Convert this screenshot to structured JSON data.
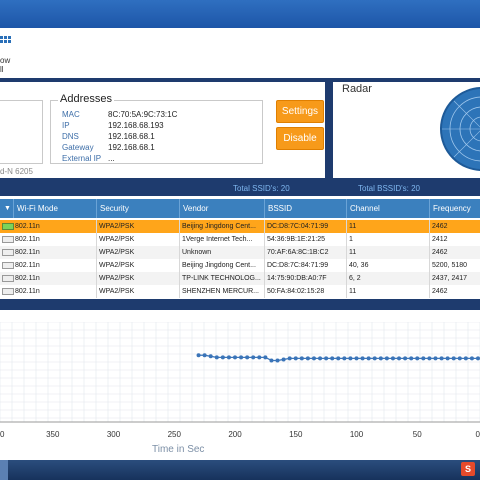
{
  "toolbar": {
    "label_line1": "ow",
    "label_line2": "ll"
  },
  "adapter": {
    "name_fragment": "d-N 6205"
  },
  "addresses": {
    "title": "Addresses",
    "rows": [
      {
        "key": "MAC",
        "value": "8C:70:5A:9C:73:1C"
      },
      {
        "key": "IP",
        "value": "192.168.68.193"
      },
      {
        "key": "DNS",
        "value": "192.168.68.1"
      },
      {
        "key": "Gateway",
        "value": "192.168.68.1"
      },
      {
        "key": "External IP",
        "value": "..."
      }
    ]
  },
  "buttons": {
    "settings": "Settings",
    "disable": "Disable"
  },
  "radar": {
    "title": "Radar"
  },
  "totals": {
    "ssids": "Total SSID's: 20",
    "bssids": "Total BSSID's: 20"
  },
  "table": {
    "columns": [
      "Wi-Fi Mode",
      "Security",
      "Vendor",
      "BSSID",
      "Channel",
      "Frequency"
    ],
    "rows": [
      {
        "mode": "802.11n",
        "security": "WPA2/PSK",
        "vendor": "Beijing Jingdong Cent...",
        "bssid": "DC:D8:7C:04:71:99",
        "channel": "11",
        "frequency": "2462"
      },
      {
        "mode": "802.11n",
        "security": "WPA2/PSK",
        "vendor": "1Verge Internet Tech...",
        "bssid": "54:36:9B:1E:21:25",
        "channel": "1",
        "frequency": "2412"
      },
      {
        "mode": "802.11n",
        "security": "WPA2/PSK",
        "vendor": "Unknown",
        "bssid": "70:AF:6A:8C:1B:C2",
        "channel": "11",
        "frequency": "2462"
      },
      {
        "mode": "802.11n",
        "security": "WPA2/PSK",
        "vendor": "Beijing Jingdong Cent...",
        "bssid": "DC:D8:7C:84:71:99",
        "channel": "40, 36",
        "frequency": "5200, 5180"
      },
      {
        "mode": "802.11n",
        "security": "WPA2/PSK",
        "vendor": "TP-LINK TECHNOLOG...",
        "bssid": "14:75:90:DB:A0:7F",
        "channel": "6, 2",
        "frequency": "2437, 2417"
      },
      {
        "mode": "802.11n",
        "security": "WPA2/PSK",
        "vendor": "SHENZHEN MERCUR...",
        "bssid": "50:FA:84:02:15:28",
        "channel": "11",
        "frequency": "2462"
      }
    ]
  },
  "graph": {
    "x_ticks": [
      "0",
      "350",
      "300",
      "250",
      "200",
      "150",
      "100",
      "50",
      "0"
    ],
    "x_label": "Time in Sec"
  },
  "chart_data": {
    "type": "line",
    "x": [
      230,
      225,
      220,
      215,
      210,
      205,
      200,
      195,
      190,
      185,
      180,
      175,
      170,
      165,
      160,
      155,
      150,
      145,
      140,
      135,
      130,
      125,
      120,
      115,
      110,
      105,
      100,
      95,
      90,
      85,
      80,
      75,
      70,
      65,
      60,
      55,
      50,
      45,
      40,
      35,
      30,
      25,
      20,
      15,
      10,
      5,
      0
    ],
    "y": [
      -55,
      -55,
      -56,
      -57,
      -57,
      -57,
      -57,
      -57,
      -57,
      -57,
      -57,
      -57,
      -60,
      -60,
      -59,
      -58,
      -58,
      -58,
      -58,
      -58,
      -58,
      -58,
      -58,
      -58,
      -58,
      -58,
      -58,
      -58,
      -58,
      -58,
      -58,
      -58,
      -58,
      -58,
      -58,
      -58,
      -58,
      -58,
      -58,
      -58,
      -58,
      -58,
      -58,
      -58,
      -58,
      -58,
      -58
    ],
    "xlabel": "Time in Sec",
    "x_direction": "reversed",
    "grid": true
  },
  "taskbar": {
    "tray_glyph": "S"
  },
  "colors": {
    "accent": "#3b80be",
    "selected_row": "#ffa51a",
    "button": "#f79a1a",
    "line": "#3a74b8"
  }
}
